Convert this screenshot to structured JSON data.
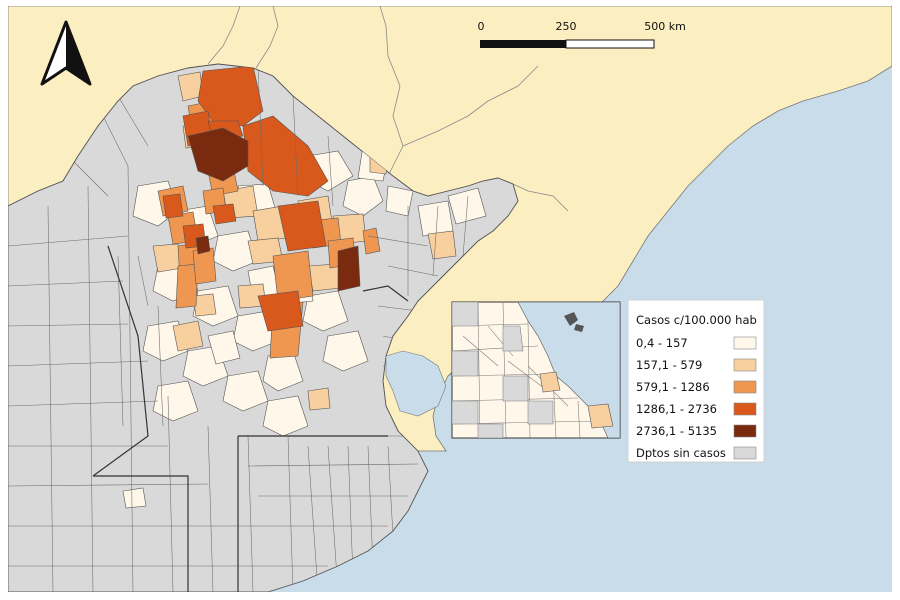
{
  "colors": {
    "sea": "#c9dcea",
    "land_neighbor": "#fbeec0",
    "no_cases": "#d9d9d9",
    "border": "#555555",
    "class_1": "#fef7ea",
    "class_2": "#f8cf9f",
    "class_3": "#ef9650",
    "class_4": "#d9581b",
    "class_5": "#7a2a0e"
  },
  "north_arrow": {
    "icon": "north-arrow-icon"
  },
  "scale_bar": {
    "labels": [
      "0",
      "250",
      "500 km"
    ]
  },
  "legend": {
    "title": "Casos c/100.000 hab",
    "items": [
      {
        "label": "0,4 - 157",
        "color": "#fef7ea"
      },
      {
        "label": "157,1 - 579",
        "color": "#f8cf9f"
      },
      {
        "label": "579,1 - 1286",
        "color": "#ef9650"
      },
      {
        "label": "1286,1 - 2736",
        "color": "#d9581b"
      },
      {
        "label": "2736,1 - 5135",
        "color": "#7a2a0e"
      },
      {
        "label": "Dptos sin casos",
        "color": "#d9d9d9"
      }
    ]
  }
}
